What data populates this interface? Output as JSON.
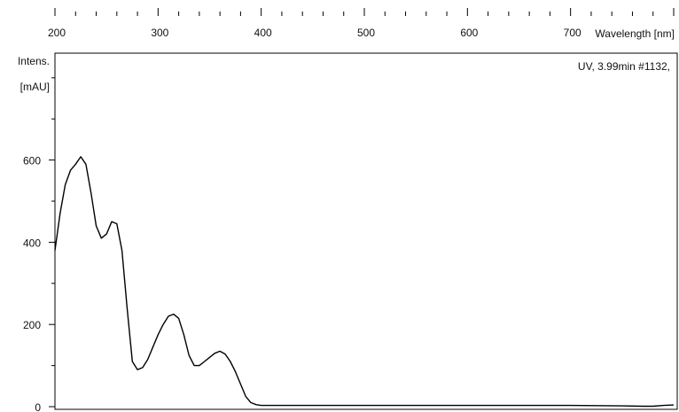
{
  "chart_data": {
    "type": "line",
    "xlabel": "Wavelength [nm]",
    "ylabel": [
      "Intens.",
      "[mAU]"
    ],
    "trace_label": "UV, 3.99min #1132,",
    "xlim": [
      200,
      800
    ],
    "ylim": [
      0,
      860
    ],
    "x_ticks": [
      200,
      300,
      400,
      500,
      600,
      700
    ],
    "y_ticks": [
      0,
      200,
      400,
      600
    ],
    "x_minor_step": 20,
    "y_minor_step": 100,
    "grid": false,
    "x_axis_position": "top",
    "series": [
      {
        "x": [
          200,
          205,
          210,
          215,
          220,
          225,
          230,
          235,
          240,
          245,
          250,
          255,
          260,
          265,
          270,
          275,
          280,
          285,
          290,
          295,
          300,
          305,
          310,
          315,
          320,
          325,
          330,
          335,
          340,
          345,
          350,
          355,
          360,
          365,
          370,
          375,
          380,
          385,
          390,
          395,
          400,
          405,
          410,
          450,
          500,
          600,
          700,
          750,
          770,
          780,
          790,
          800
        ],
        "y": [
          380,
          470,
          540,
          575,
          590,
          608,
          590,
          520,
          440,
          410,
          420,
          450,
          445,
          380,
          240,
          110,
          90,
          95,
          115,
          145,
          175,
          200,
          220,
          225,
          215,
          175,
          125,
          100,
          100,
          110,
          120,
          130,
          135,
          128,
          110,
          85,
          55,
          25,
          10,
          5,
          3,
          3,
          3,
          3,
          3,
          3,
          3,
          2,
          1,
          1,
          3,
          4
        ]
      }
    ]
  },
  "colors": {
    "line": "#000000",
    "axis": "#000000",
    "background": "#ffffff"
  }
}
